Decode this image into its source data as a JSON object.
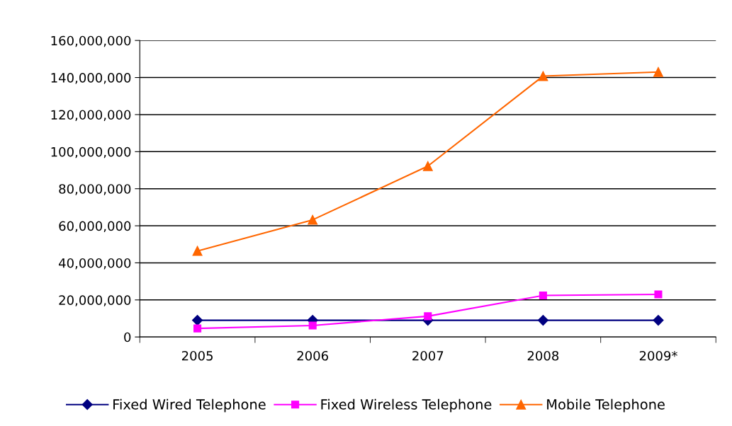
{
  "chart_data": {
    "type": "line",
    "categories": [
      "2005",
      "2006",
      "2007",
      "2008",
      "2009*"
    ],
    "series": [
      {
        "name": "Fixed Wired Telephone",
        "color": "#000080",
        "marker": "diamond",
        "values": [
          9000000,
          9000000,
          9000000,
          9000000,
          9000000
        ]
      },
      {
        "name": "Fixed Wireless Telephone",
        "color": "#ff00ff",
        "marker": "square",
        "values": [
          4600000,
          6200000,
          11200000,
          22400000,
          23000000
        ]
      },
      {
        "name": "Mobile Telephone",
        "color": "#ff6600",
        "marker": "triangle",
        "values": [
          46400000,
          63200000,
          92200000,
          140800000,
          143000000
        ]
      }
    ],
    "ylim": [
      0,
      160000000
    ],
    "yticks": [
      {
        "value": 0,
        "label": "0"
      },
      {
        "value": 20000000,
        "label": "20,000,000"
      },
      {
        "value": 40000000,
        "label": "40,000,000"
      },
      {
        "value": 60000000,
        "label": "60,000,000"
      },
      {
        "value": 80000000,
        "label": "80,000,000"
      },
      {
        "value": 100000000,
        "label": "100,000,000"
      },
      {
        "value": 120000000,
        "label": "120,000,000"
      },
      {
        "value": 140000000,
        "label": "140,000,000"
      },
      {
        "value": 160000000,
        "label": "160,000,000"
      }
    ],
    "grid": "y",
    "legend": "bottom",
    "line_style": "solid"
  }
}
